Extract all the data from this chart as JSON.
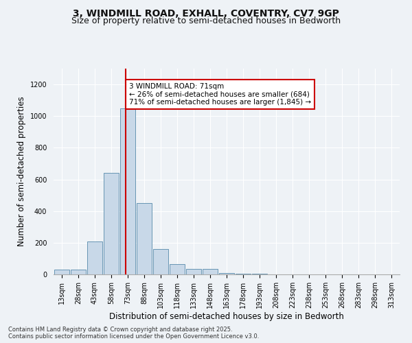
{
  "title_line1": "3, WINDMILL ROAD, EXHALL, COVENTRY, CV7 9GP",
  "title_line2": "Size of property relative to semi-detached houses in Bedworth",
  "xlabel": "Distribution of semi-detached houses by size in Bedworth",
  "ylabel": "Number of semi-detached properties",
  "footnote": "Contains HM Land Registry data © Crown copyright and database right 2025.\nContains public sector information licensed under the Open Government Licence v3.0.",
  "bar_labels": [
    "13sqm",
    "28sqm",
    "43sqm",
    "58sqm",
    "73sqm",
    "88sqm",
    "103sqm",
    "118sqm",
    "133sqm",
    "148sqm",
    "163sqm",
    "178sqm",
    "193sqm",
    "208sqm",
    "223sqm",
    "238sqm",
    "253sqm",
    "268sqm",
    "283sqm",
    "298sqm",
    "313sqm"
  ],
  "bar_values": [
    30,
    30,
    210,
    640,
    1050,
    450,
    160,
    65,
    35,
    35,
    10,
    5,
    3,
    0,
    0,
    0,
    0,
    0,
    0,
    0,
    0
  ],
  "bar_color": "#c8d8e8",
  "bar_edge_color": "#5588aa",
  "property_size": 71,
  "property_size_label": "3 WINDMILL ROAD: 71sqm",
  "pct_smaller": 26,
  "pct_larger": 71,
  "count_smaller": 684,
  "count_larger": 1845,
  "vline_color": "#cc0000",
  "annotation_box_color": "#cc0000",
  "annotation_text_color": "#000000",
  "ylim": [
    0,
    1300
  ],
  "yticks": [
    0,
    200,
    400,
    600,
    800,
    1000,
    1200
  ],
  "background_color": "#eef2f6",
  "plot_background": "#eef2f6",
  "grid_color": "#ffffff",
  "title_fontsize": 10,
  "subtitle_fontsize": 9,
  "tick_fontsize": 7,
  "label_fontsize": 8.5,
  "footnote_fontsize": 6.0
}
